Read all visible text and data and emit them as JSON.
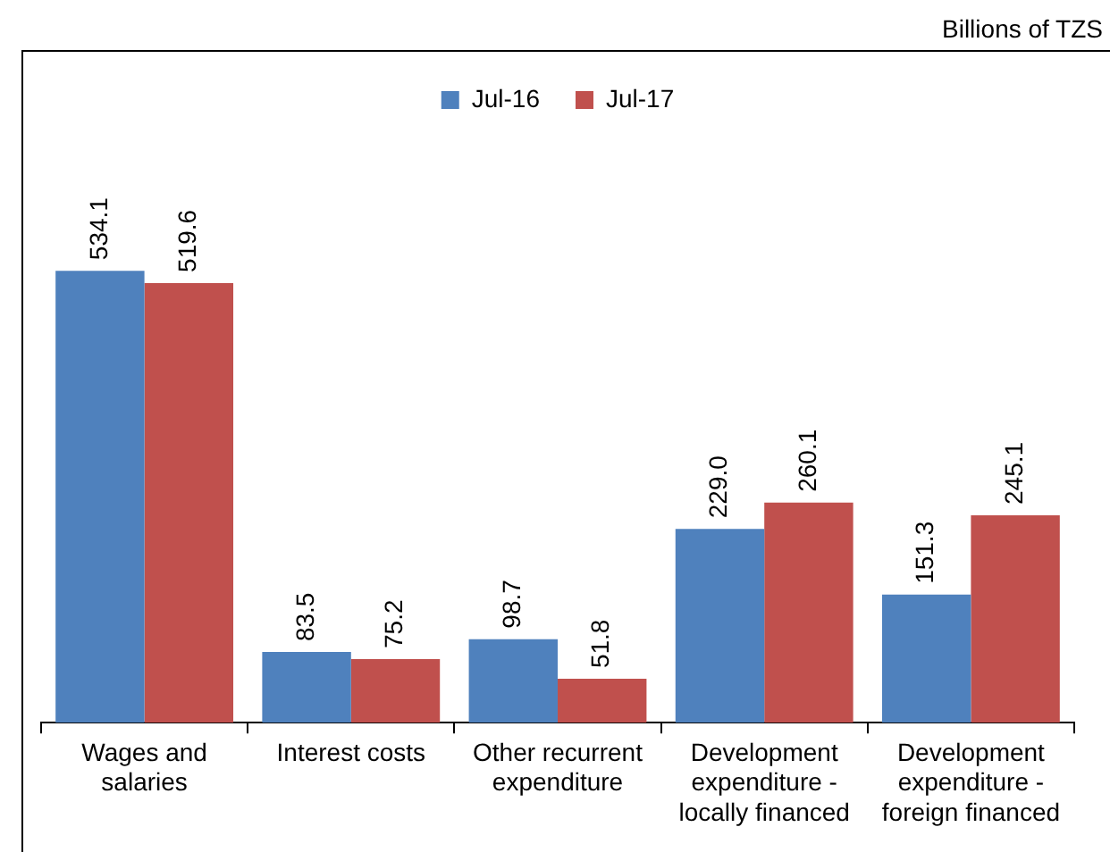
{
  "chart_data": {
    "type": "bar",
    "subtitle": "Billions of TZS",
    "categories": [
      "Wages and salaries",
      "Interest costs",
      "Other recurrent expenditure",
      "Development expenditure - locally financed",
      "Development expenditure - foreign financed"
    ],
    "series": [
      {
        "name": "Jul-16",
        "color": "#4f81bd",
        "values": [
          534.1,
          83.5,
          98.7,
          229.0,
          151.3
        ],
        "value_labels": [
          "534.1",
          "83.5",
          "98.7",
          "229.0",
          "151.3"
        ]
      },
      {
        "name": "Jul-17",
        "color": "#c0504d",
        "values": [
          519.6,
          75.2,
          51.8,
          260.1,
          245.1
        ],
        "value_labels": [
          "519.6",
          "75.2",
          "51.8",
          "260.1",
          "245.1"
        ]
      }
    ],
    "legend": "top",
    "grid": false
  }
}
